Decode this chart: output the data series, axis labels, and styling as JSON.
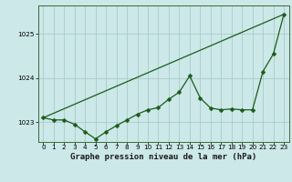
{
  "title": "Graphe pression niveau de la mer (hPa)",
  "background_color": "#cce8e8",
  "line_color": "#1a5c1a",
  "grid_color": "#aacccc",
  "x_ticks": [
    0,
    1,
    2,
    3,
    4,
    5,
    6,
    7,
    8,
    9,
    10,
    11,
    12,
    13,
    14,
    15,
    16,
    17,
    18,
    19,
    20,
    21,
    22,
    23
  ],
  "ylim": [
    1022.55,
    1025.65
  ],
  "yticks": [
    1023,
    1024,
    1025
  ],
  "series1_x": [
    0,
    1,
    2,
    3,
    4,
    5,
    6,
    7,
    8,
    9,
    10,
    11,
    12,
    13,
    14,
    15,
    16,
    17,
    18,
    19,
    20,
    21,
    22,
    23
  ],
  "series1_y": [
    1023.1,
    1023.05,
    1023.05,
    1022.95,
    1022.78,
    1022.62,
    1022.78,
    1022.92,
    1023.05,
    1023.18,
    1023.28,
    1023.33,
    1023.52,
    1023.68,
    1024.05,
    1023.55,
    1023.32,
    1023.28,
    1023.3,
    1023.28,
    1023.28,
    1024.15,
    1024.55,
    1025.45
  ],
  "series2_x": [
    0,
    23
  ],
  "series2_y": [
    1023.1,
    1025.45
  ],
  "title_fontsize": 6.5,
  "tick_fontsize": 5.2,
  "marker_size": 2.5,
  "line_width": 0.9
}
